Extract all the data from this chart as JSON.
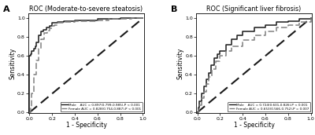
{
  "panel_A_title": "ROC (Moderate-to-severe steatosis)",
  "panel_B_title": "ROC (Significant liver fibrosis)",
  "xlabel": "1 - Specificity",
  "ylabel": "Sensitivity",
  "panel_A_label": "A",
  "panel_B_label": "B",
  "legend_A_male": "Male    AUC = 0.897(0.799-0.985),P < 0.001",
  "legend_A_female": "Female AUC = 0.828(0.754-0.887),P < 0.001",
  "legend_B_male": "Male    AUC = 0.724(0.601-0.826),P < 0.001",
  "legend_B_female": "Female AUC = 0.653(0.566-0.752),P = 0.007",
  "male_color": "#1a1a1a",
  "female_color": "#808080",
  "diagonal_color": "#1a1a1a",
  "fpr_A_male": [
    0,
    0.0,
    0.01,
    0.02,
    0.04,
    0.05,
    0.06,
    0.08,
    0.1,
    0.12,
    0.15,
    0.18,
    0.2,
    0.25,
    0.3,
    0.4,
    0.5,
    0.6,
    0.7,
    0.8,
    0.9,
    1.0
  ],
  "tpr_A_male": [
    0,
    0.6,
    0.62,
    0.65,
    0.68,
    0.7,
    0.74,
    0.82,
    0.86,
    0.88,
    0.9,
    0.92,
    0.95,
    0.96,
    0.97,
    0.98,
    0.98,
    0.99,
    0.99,
    1.0,
    1.0,
    1.0
  ],
  "fpr_A_female": [
    0,
    0.01,
    0.02,
    0.04,
    0.06,
    0.08,
    0.1,
    0.13,
    0.16,
    0.18,
    0.2,
    0.22,
    0.25,
    0.3,
    0.4,
    0.5,
    0.6,
    0.7,
    0.8,
    0.9,
    1.0
  ],
  "tpr_A_female": [
    0,
    0.05,
    0.2,
    0.4,
    0.55,
    0.68,
    0.78,
    0.84,
    0.87,
    0.89,
    0.92,
    0.93,
    0.95,
    0.96,
    0.97,
    0.97,
    0.98,
    0.99,
    0.99,
    1.0,
    1.0
  ],
  "fpr_B_male": [
    0,
    0.01,
    0.02,
    0.04,
    0.06,
    0.08,
    0.1,
    0.12,
    0.15,
    0.18,
    0.2,
    0.25,
    0.3,
    0.35,
    0.4,
    0.5,
    0.6,
    0.7,
    0.8,
    0.9,
    1.0
  ],
  "tpr_B_male": [
    0,
    0.05,
    0.12,
    0.2,
    0.28,
    0.35,
    0.42,
    0.5,
    0.58,
    0.62,
    0.65,
    0.72,
    0.78,
    0.82,
    0.86,
    0.9,
    0.93,
    0.96,
    0.97,
    0.99,
    1.0
  ],
  "fpr_B_female": [
    0,
    0.01,
    0.02,
    0.04,
    0.06,
    0.08,
    0.1,
    0.13,
    0.16,
    0.2,
    0.25,
    0.3,
    0.4,
    0.5,
    0.6,
    0.7,
    0.8,
    0.9,
    1.0
  ],
  "tpr_B_female": [
    0,
    0.03,
    0.08,
    0.15,
    0.22,
    0.3,
    0.38,
    0.46,
    0.54,
    0.6,
    0.65,
    0.7,
    0.77,
    0.82,
    0.86,
    0.9,
    0.93,
    0.96,
    1.0
  ],
  "xticks": [
    0.0,
    0.2,
    0.4,
    0.6,
    0.8,
    1.0
  ],
  "yticks": [
    0.0,
    0.2,
    0.4,
    0.6,
    0.8,
    1.0
  ]
}
